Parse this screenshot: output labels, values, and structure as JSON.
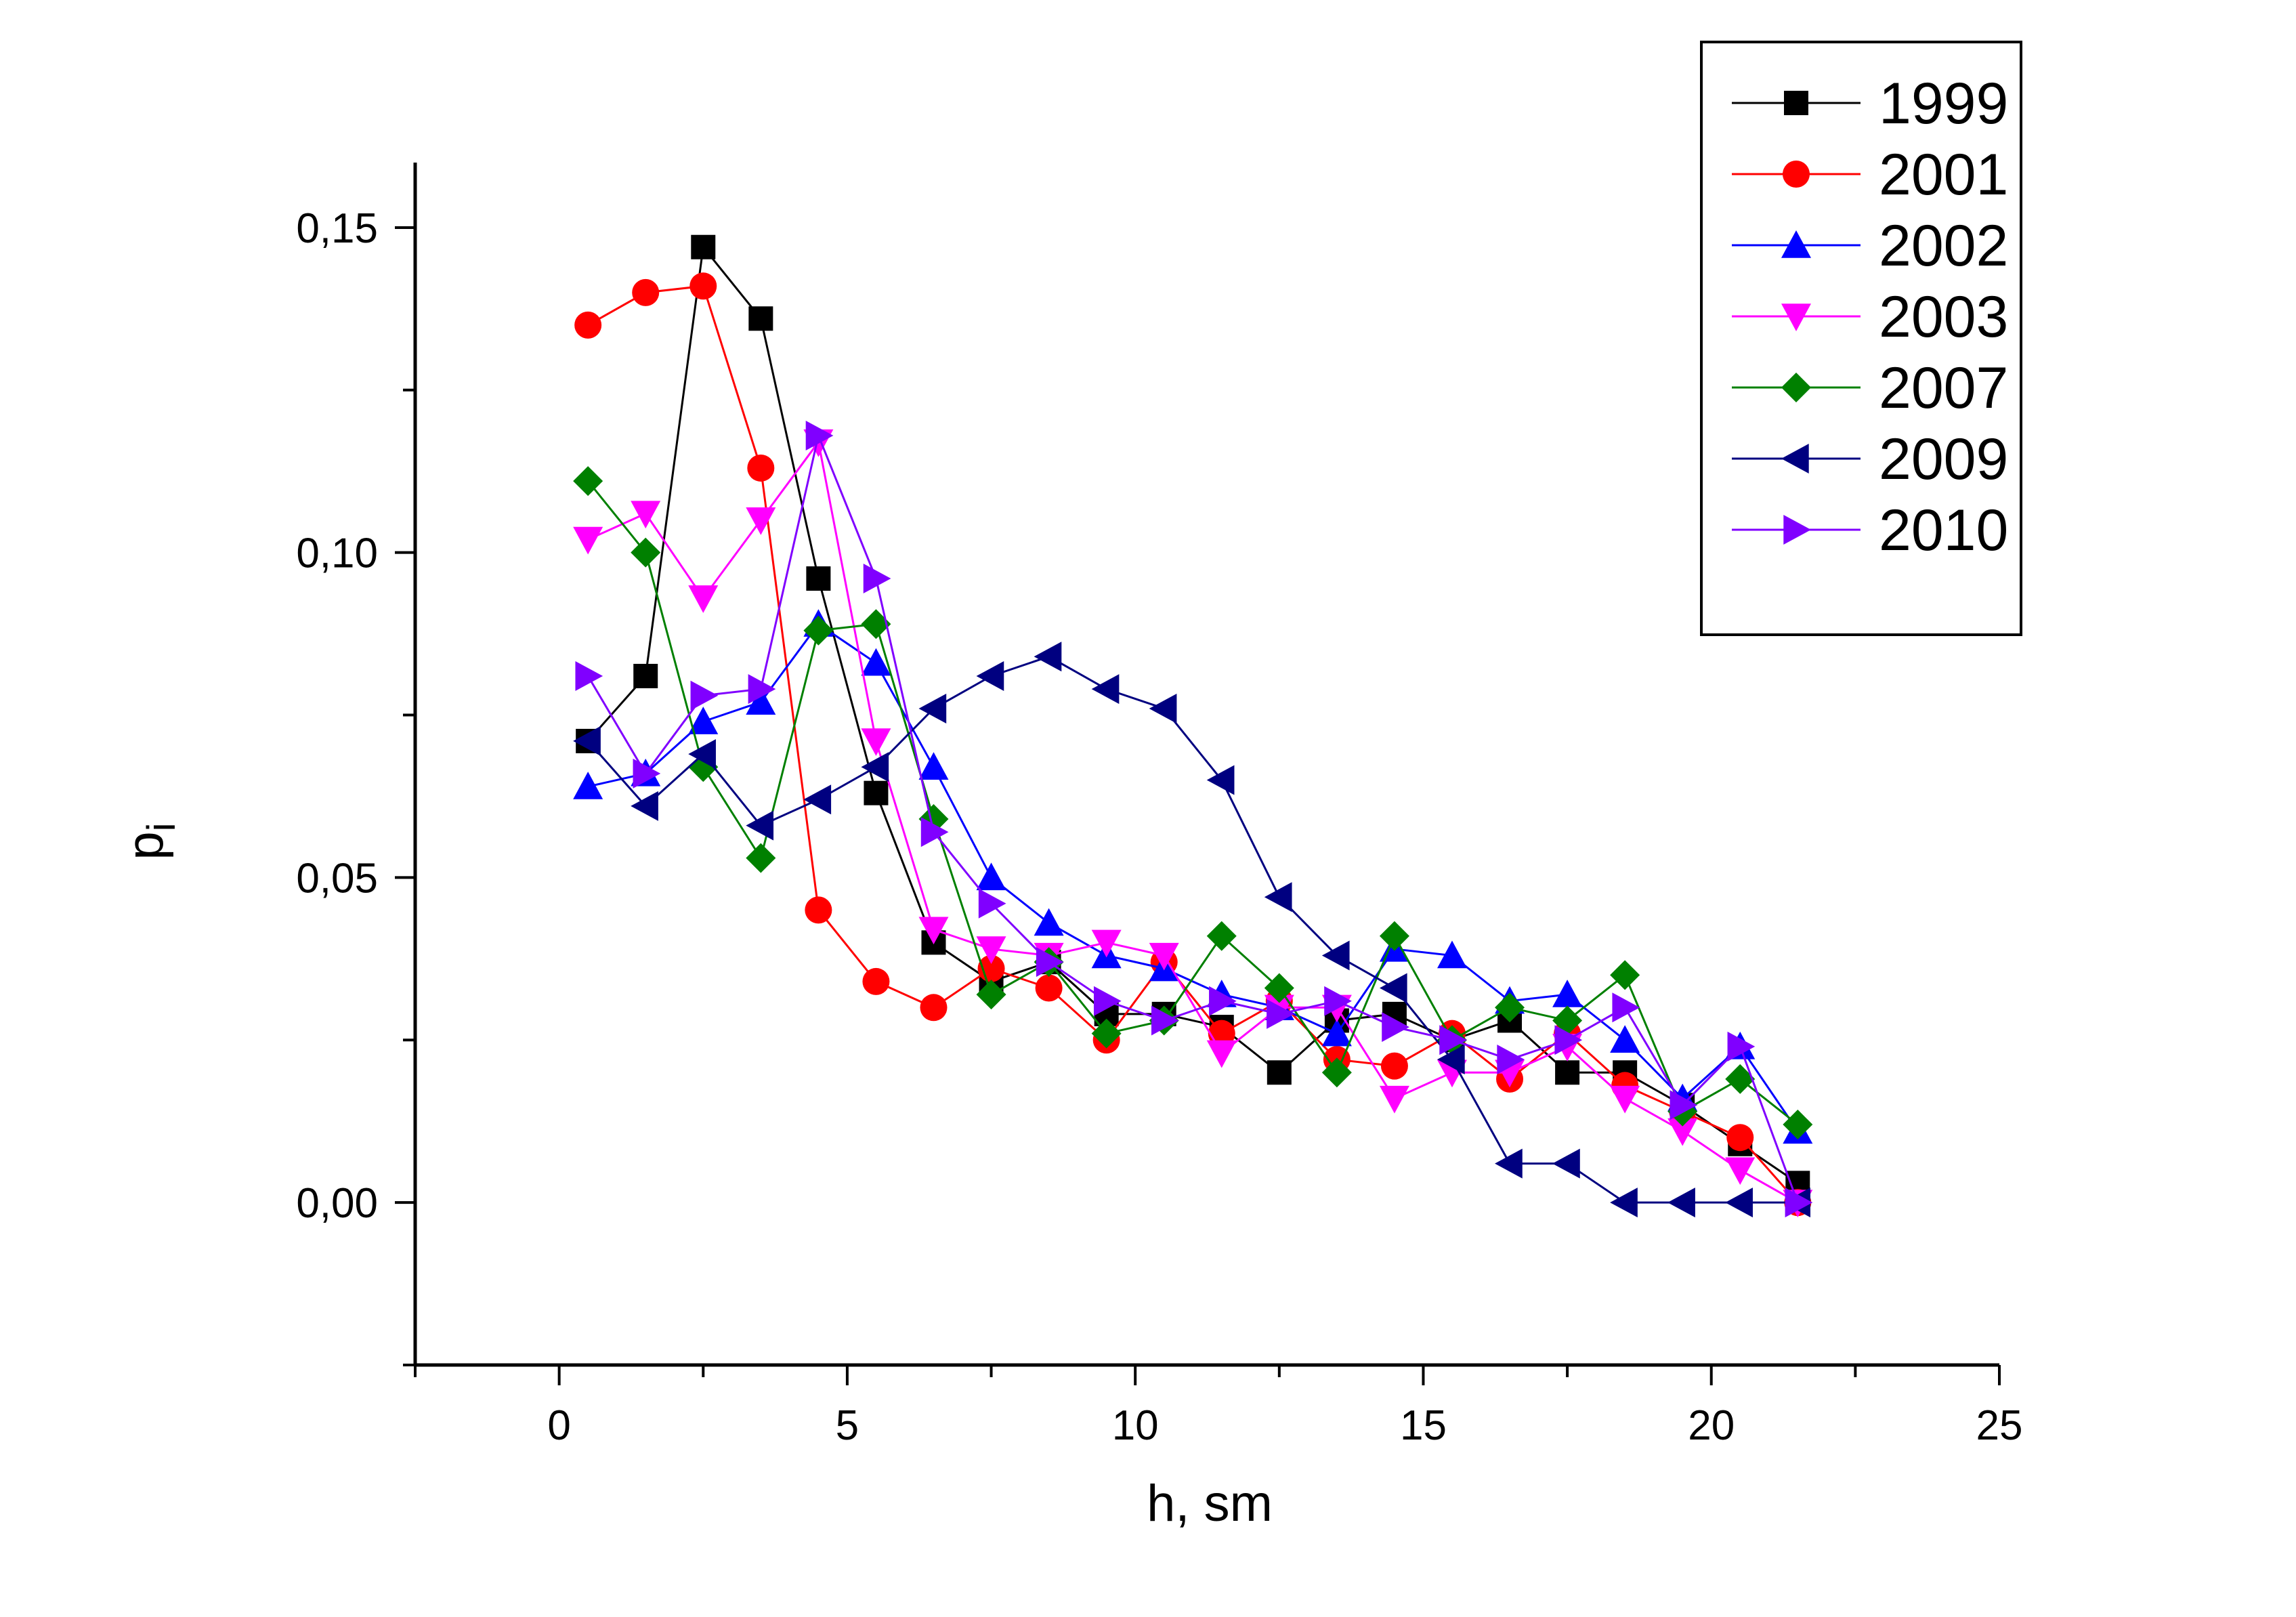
{
  "chart_data": {
    "type": "line",
    "xlabel": "h, sm",
    "ylabel_main": "p",
    "ylabel_sub": "i",
    "xlim": [
      -2.5,
      25
    ],
    "ylim": [
      -0.025,
      0.16
    ],
    "xticks": [
      0,
      5,
      10,
      15,
      20,
      25
    ],
    "xtick_labels": [
      "0",
      "5",
      "10",
      "15",
      "20",
      "25"
    ],
    "yticks": [
      0.0,
      0.05,
      0.1,
      0.15
    ],
    "ytick_labels": [
      "0,00",
      "0,05",
      "0,10",
      "0,15"
    ],
    "legend_position": "top-right",
    "x": [
      0.5,
      1.5,
      2.5,
      3.5,
      4.5,
      5.5,
      6.5,
      7.5,
      8.5,
      9.5,
      10.5,
      11.5,
      12.5,
      13.5,
      14.5,
      15.5,
      16.5,
      17.5,
      18.5,
      19.5,
      20.5,
      21.5
    ],
    "series": [
      {
        "name": "1999",
        "color": "#000000",
        "marker": "square",
        "values": [
          0.071,
          0.081,
          0.147,
          0.136,
          0.096,
          0.063,
          0.04,
          0.034,
          0.037,
          0.029,
          0.029,
          0.027,
          0.02,
          0.028,
          0.029,
          0.025,
          0.028,
          0.02,
          0.02,
          0.015,
          0.009,
          0.003
        ]
      },
      {
        "name": "2001",
        "color": "#ff0000",
        "marker": "circle",
        "values": [
          0.135,
          0.14,
          0.141,
          0.113,
          0.045,
          0.034,
          0.03,
          0.036,
          0.033,
          0.025,
          0.037,
          0.026,
          0.031,
          0.022,
          0.021,
          0.026,
          0.019,
          0.026,
          0.018,
          0.014,
          0.01,
          0.0
        ]
      },
      {
        "name": "2002",
        "color": "#0000ff",
        "marker": "triangle-up",
        "values": [
          0.064,
          0.066,
          0.074,
          0.077,
          0.089,
          0.083,
          0.067,
          0.05,
          0.043,
          0.038,
          0.036,
          0.032,
          0.03,
          0.026,
          0.039,
          0.038,
          0.031,
          0.032,
          0.025,
          0.016,
          0.024,
          0.011
        ]
      },
      {
        "name": "2003",
        "color": "#ff00ff",
        "marker": "triangle-down",
        "values": [
          0.102,
          0.106,
          0.093,
          0.105,
          0.117,
          0.071,
          0.042,
          0.039,
          0.038,
          0.04,
          0.038,
          0.023,
          0.03,
          0.03,
          0.016,
          0.02,
          0.02,
          0.024,
          0.016,
          0.011,
          0.005,
          0.0
        ]
      },
      {
        "name": "2007",
        "color": "#008000",
        "marker": "diamond",
        "values": [
          0.111,
          0.1,
          0.067,
          0.053,
          0.088,
          0.089,
          0.059,
          0.032,
          0.037,
          0.026,
          0.028,
          0.041,
          0.033,
          0.02,
          0.041,
          0.025,
          0.03,
          0.028,
          0.035,
          0.014,
          0.019,
          0.012
        ]
      },
      {
        "name": "2009",
        "color": "#000080",
        "marker": "triangle-left",
        "values": [
          0.071,
          0.061,
          0.069,
          0.058,
          0.062,
          0.067,
          0.076,
          0.081,
          0.084,
          0.079,
          0.076,
          0.065,
          0.047,
          0.038,
          0.033,
          0.022,
          0.006,
          0.006,
          0.0,
          0.0,
          0.0,
          0.0
        ]
      },
      {
        "name": "2010",
        "color": "#8000ff",
        "marker": "triangle-right",
        "values": [
          0.081,
          0.066,
          0.078,
          0.079,
          0.118,
          0.096,
          0.057,
          0.046,
          0.037,
          0.031,
          0.028,
          0.031,
          0.029,
          0.031,
          0.027,
          0.025,
          0.022,
          0.025,
          0.03,
          0.015,
          0.024,
          0.0
        ]
      }
    ]
  }
}
